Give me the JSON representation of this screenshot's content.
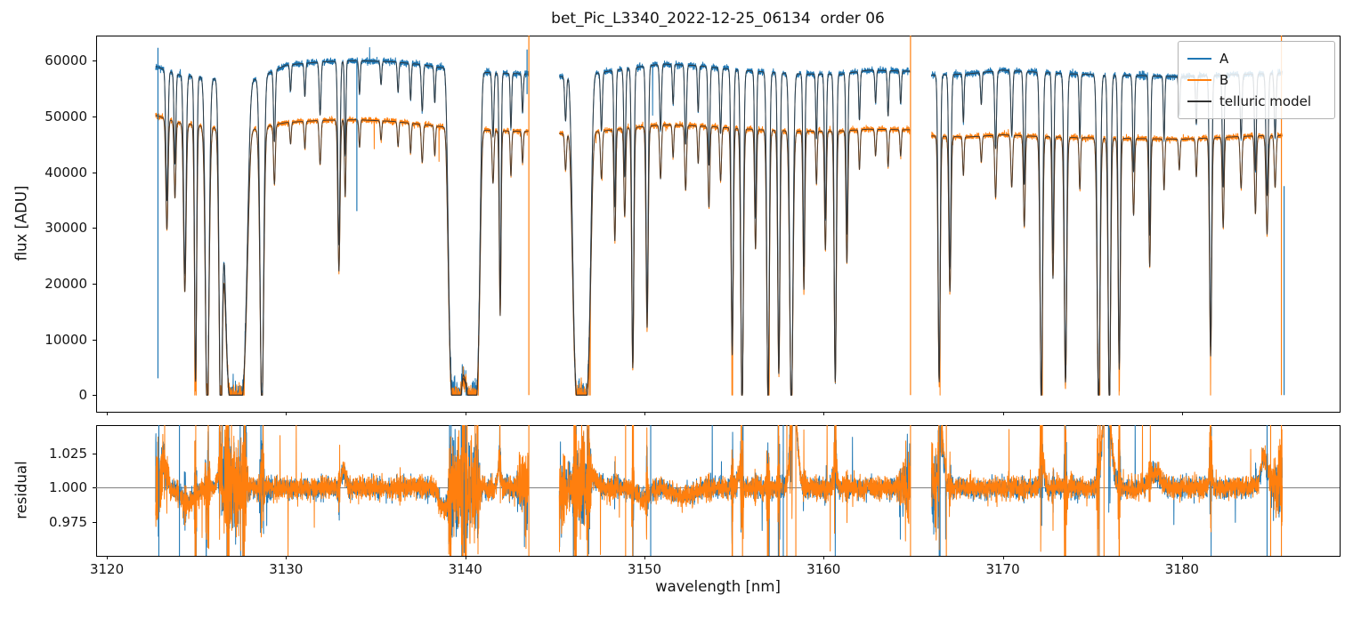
{
  "chart_data": {
    "type": "line",
    "title": "bet_Pic_L3340_2022-12-25_06134  order 06",
    "xlabel": "wavelength [nm]",
    "xlim": [
      3119.4,
      3188.8
    ],
    "x_ticks": [
      3120,
      3130,
      3140,
      3150,
      3160,
      3170,
      3180
    ],
    "top_panel": {
      "ylabel": "flux [ADU]",
      "ylim": [
        -3000,
        64500
      ],
      "y_ticks": [
        0,
        10000,
        20000,
        30000,
        40000,
        50000,
        60000
      ]
    },
    "bottom_panel": {
      "ylabel": "residual",
      "ylim": [
        0.9505,
        1.0455
      ],
      "y_ticks": [
        0.975,
        1.0,
        1.025
      ],
      "hline": 1.0
    },
    "legend": [
      {
        "label": "A",
        "color": "#1f77b4"
      },
      {
        "label": "B",
        "color": "#ff7f0e"
      },
      {
        "label": "telluric model",
        "color": "#333333"
      }
    ],
    "colors": {
      "A": "#1f77b4",
      "B": "#ff7f0e",
      "model": "#333333",
      "hline": "#808080"
    },
    "segments": [
      [
        3122.72,
        3143.52
      ],
      [
        3145.25,
        3164.82
      ],
      [
        3166.02,
        3185.6
      ]
    ],
    "continuum_A": [
      [
        3122.7,
        59000
      ],
      [
        3124,
        57500
      ],
      [
        3126,
        56800
      ],
      [
        3128,
        56300
      ],
      [
        3130,
        59200
      ],
      [
        3132,
        59800
      ],
      [
        3134,
        60000
      ],
      [
        3136,
        59800
      ],
      [
        3137.5,
        59300
      ],
      [
        3139,
        58600
      ],
      [
        3141,
        57900
      ],
      [
        3143.5,
        57600
      ],
      [
        3145.2,
        57100
      ],
      [
        3147,
        57600
      ],
      [
        3149,
        58600
      ],
      [
        3151,
        59400
      ],
      [
        3153,
        59100
      ],
      [
        3155,
        58400
      ],
      [
        3157,
        57900
      ],
      [
        3159,
        57600
      ],
      [
        3161,
        57600
      ],
      [
        3162.5,
        58300
      ],
      [
        3164.8,
        58100
      ],
      [
        3166,
        57400
      ],
      [
        3168,
        57600
      ],
      [
        3170,
        58300
      ],
      [
        3172,
        57900
      ],
      [
        3174,
        57600
      ],
      [
        3176,
        57400
      ],
      [
        3178,
        57300
      ],
      [
        3180,
        57100
      ],
      [
        3182,
        57400
      ],
      [
        3184,
        57600
      ],
      [
        3185.8,
        57800
      ]
    ],
    "continuum_B": [
      [
        3122.7,
        50200
      ],
      [
        3124,
        48900
      ],
      [
        3126,
        48000
      ],
      [
        3128,
        47600
      ],
      [
        3130,
        48900
      ],
      [
        3132,
        49300
      ],
      [
        3134,
        49400
      ],
      [
        3136,
        49100
      ],
      [
        3138,
        48400
      ],
      [
        3140,
        47700
      ],
      [
        3142,
        47400
      ],
      [
        3143.5,
        47300
      ],
      [
        3145.2,
        46900
      ],
      [
        3147,
        47100
      ],
      [
        3149,
        47900
      ],
      [
        3151,
        48500
      ],
      [
        3153,
        48300
      ],
      [
        3155,
        47900
      ],
      [
        3157,
        47500
      ],
      [
        3159,
        47300
      ],
      [
        3161,
        47400
      ],
      [
        3162.5,
        47700
      ],
      [
        3164.8,
        47600
      ],
      [
        3166,
        46500
      ],
      [
        3168,
        46300
      ],
      [
        3170,
        46700
      ],
      [
        3172,
        46400
      ],
      [
        3174,
        46200
      ],
      [
        3176,
        46100
      ],
      [
        3178,
        46000
      ],
      [
        3180,
        45900
      ],
      [
        3182,
        46200
      ],
      [
        3184,
        46500
      ],
      [
        3185.8,
        46600
      ]
    ],
    "absorption_lines": [
      [
        3123.35,
        0.4,
        0.06,
        2
      ],
      [
        3123.8,
        0.28,
        0.05,
        2
      ],
      [
        3124.35,
        0.62,
        0.07,
        2
      ],
      [
        3124.95,
        0.95,
        0.06,
        2
      ],
      [
        3125.6,
        1.08,
        0.1,
        2
      ],
      [
        3126.35,
        1.06,
        0.09,
        2
      ],
      [
        3127.2,
        1.05,
        0.6,
        5
      ],
      [
        3128.65,
        1.06,
        0.1,
        2
      ],
      [
        3129.35,
        0.22,
        0.05,
        2
      ],
      [
        3130.25,
        0.08,
        0.04,
        2
      ],
      [
        3131.05,
        0.1,
        0.04,
        2
      ],
      [
        3131.9,
        0.16,
        0.05,
        2
      ],
      [
        3132.95,
        0.55,
        0.06,
        2
      ],
      [
        3133.3,
        0.28,
        0.04,
        2
      ],
      [
        3134.1,
        0.1,
        0.04,
        2
      ],
      [
        3135.3,
        0.07,
        0.04,
        2
      ],
      [
        3136.25,
        0.09,
        0.04,
        2
      ],
      [
        3136.95,
        0.11,
        0.04,
        2
      ],
      [
        3137.6,
        0.14,
        0.05,
        2
      ],
      [
        3138.3,
        0.11,
        0.04,
        2
      ],
      [
        3139.5,
        1.05,
        0.42,
        5
      ],
      [
        3140.4,
        1.05,
        0.4,
        5
      ],
      [
        3141.55,
        0.2,
        0.05,
        2
      ],
      [
        3141.95,
        0.7,
        0.05,
        2
      ],
      [
        3142.55,
        0.17,
        0.04,
        2
      ],
      [
        3143.2,
        0.12,
        0.04,
        2
      ],
      [
        3145.6,
        0.14,
        0.05,
        2
      ],
      [
        3146.5,
        1.05,
        0.48,
        5
      ],
      [
        3147.6,
        0.18,
        0.05,
        2
      ],
      [
        3148.35,
        0.42,
        0.05,
        2
      ],
      [
        3148.9,
        0.33,
        0.05,
        2
      ],
      [
        3149.35,
        0.9,
        0.06,
        2
      ],
      [
        3150.15,
        0.75,
        0.06,
        2
      ],
      [
        3150.9,
        0.2,
        0.05,
        2
      ],
      [
        3151.6,
        0.12,
        0.04,
        2
      ],
      [
        3152.3,
        0.24,
        0.05,
        2
      ],
      [
        3153.0,
        0.14,
        0.04,
        2
      ],
      [
        3153.6,
        0.3,
        0.05,
        2
      ],
      [
        3154.25,
        0.2,
        0.05,
        2
      ],
      [
        3154.9,
        0.85,
        0.06,
        2
      ],
      [
        3155.45,
        1.05,
        0.07,
        2
      ],
      [
        3156.2,
        0.45,
        0.05,
        2
      ],
      [
        3156.9,
        1.02,
        0.07,
        2
      ],
      [
        3157.5,
        0.92,
        0.06,
        2
      ],
      [
        3158.2,
        1.06,
        0.09,
        2
      ],
      [
        3158.9,
        0.6,
        0.05,
        2
      ],
      [
        3159.6,
        0.2,
        0.04,
        2
      ],
      [
        3160.1,
        0.45,
        0.05,
        2
      ],
      [
        3160.65,
        0.95,
        0.06,
        2
      ],
      [
        3161.3,
        0.5,
        0.05,
        2
      ],
      [
        3162.0,
        0.15,
        0.04,
        2
      ],
      [
        3162.9,
        0.1,
        0.04,
        2
      ],
      [
        3163.6,
        0.14,
        0.04,
        2
      ],
      [
        3164.3,
        0.1,
        0.04,
        2
      ],
      [
        3166.45,
        0.95,
        0.06,
        2
      ],
      [
        3167.05,
        0.6,
        0.06,
        2
      ],
      [
        3167.8,
        0.15,
        0.04,
        2
      ],
      [
        3168.8,
        0.1,
        0.04,
        2
      ],
      [
        3169.6,
        0.24,
        0.05,
        2
      ],
      [
        3170.5,
        0.2,
        0.05,
        2
      ],
      [
        3171.2,
        0.35,
        0.05,
        2
      ],
      [
        3172.15,
        1.03,
        0.07,
        2
      ],
      [
        3172.8,
        0.55,
        0.05,
        2
      ],
      [
        3173.5,
        0.95,
        0.07,
        2
      ],
      [
        3174.3,
        0.2,
        0.04,
        2
      ],
      [
        3175.35,
        1.05,
        0.08,
        2
      ],
      [
        3175.95,
        1.05,
        0.07,
        2
      ],
      [
        3176.5,
        0.9,
        0.06,
        2
      ],
      [
        3177.3,
        0.3,
        0.05,
        2
      ],
      [
        3178.2,
        0.5,
        0.05,
        2
      ],
      [
        3179.0,
        0.2,
        0.04,
        2
      ],
      [
        3179.85,
        0.12,
        0.04,
        2
      ],
      [
        3180.8,
        0.15,
        0.04,
        2
      ],
      [
        3181.6,
        0.85,
        0.06,
        2
      ],
      [
        3182.3,
        0.35,
        0.05,
        2
      ],
      [
        3183.3,
        0.2,
        0.05,
        2
      ],
      [
        3184.1,
        0.3,
        0.05,
        2
      ],
      [
        3184.75,
        0.38,
        0.06,
        2
      ],
      [
        3185.2,
        0.2,
        0.05,
        2
      ]
    ],
    "residual_features": [
      [
        3123.2,
        0.015,
        0.15
      ],
      [
        3124.5,
        -0.01,
        0.4
      ],
      [
        3126.3,
        0.012,
        0.1
      ],
      [
        3133.2,
        0.012,
        0.12
      ],
      [
        3138.8,
        -0.013,
        0.25
      ],
      [
        3140.0,
        0.01,
        0.15
      ],
      [
        3141.9,
        0.018,
        0.08
      ],
      [
        3147.1,
        0.006,
        0.3
      ],
      [
        3149.9,
        -0.008,
        0.3
      ],
      [
        3152.2,
        -0.006,
        0.6
      ],
      [
        3155.3,
        0.012,
        0.1
      ],
      [
        3158.35,
        0.06,
        0.18
      ],
      [
        3160.65,
        0.02,
        0.08
      ],
      [
        3166.6,
        0.035,
        0.12
      ],
      [
        3172.2,
        0.02,
        0.1
      ],
      [
        3175.8,
        0.07,
        0.22
      ],
      [
        3178.5,
        0.01,
        0.3
      ],
      [
        3181.6,
        0.02,
        0.08
      ],
      [
        3184.6,
        0.02,
        0.2
      ]
    ],
    "top_spikes": [
      {
        "x": 3122.85,
        "series": "A",
        "y0": 3000,
        "y1": 62300
      },
      {
        "x": 3133.95,
        "series": "A",
        "y0": 33000,
        "y1": 60000
      },
      {
        "x": 3143.45,
        "series": "A",
        "y0": 54000,
        "y1": 62000
      },
      {
        "x": 3143.55,
        "series": "B",
        "y0": 0,
        "y1": 64500
      },
      {
        "x": 3164.85,
        "series": "B",
        "y0": 0,
        "y1": 64500
      },
      {
        "x": 3185.55,
        "series": "B",
        "y0": 0,
        "y1": 64500
      },
      {
        "x": 3185.7,
        "series": "A",
        "y0": 0,
        "y1": 37500
      }
    ],
    "bottom_spikes": [
      {
        "x": 3122.9,
        "series": "A"
      },
      {
        "x": 3124.05,
        "series": "A"
      },
      {
        "x": 3143.55,
        "series": "B"
      },
      {
        "x": 3148.95,
        "series": "B"
      },
      {
        "x": 3150.35,
        "series": "A"
      },
      {
        "x": 3157.75,
        "series": "A"
      },
      {
        "x": 3157.95,
        "series": "B"
      },
      {
        "x": 3158.45,
        "series": "B"
      },
      {
        "x": 3164.85,
        "series": "B"
      },
      {
        "x": 3166.5,
        "series": "A"
      },
      {
        "x": 3166.85,
        "series": "B"
      },
      {
        "x": 3175.65,
        "series": "B"
      },
      {
        "x": 3184.75,
        "series": "A"
      },
      {
        "x": 3184.95,
        "series": "B"
      },
      {
        "x": 3185.55,
        "series": "B"
      }
    ],
    "noise_seed": 7,
    "noise": {
      "flux_rel_sigma": 0.003,
      "residual_base_sigma": 0.0035,
      "residual_line_sigma": 0.05
    }
  }
}
